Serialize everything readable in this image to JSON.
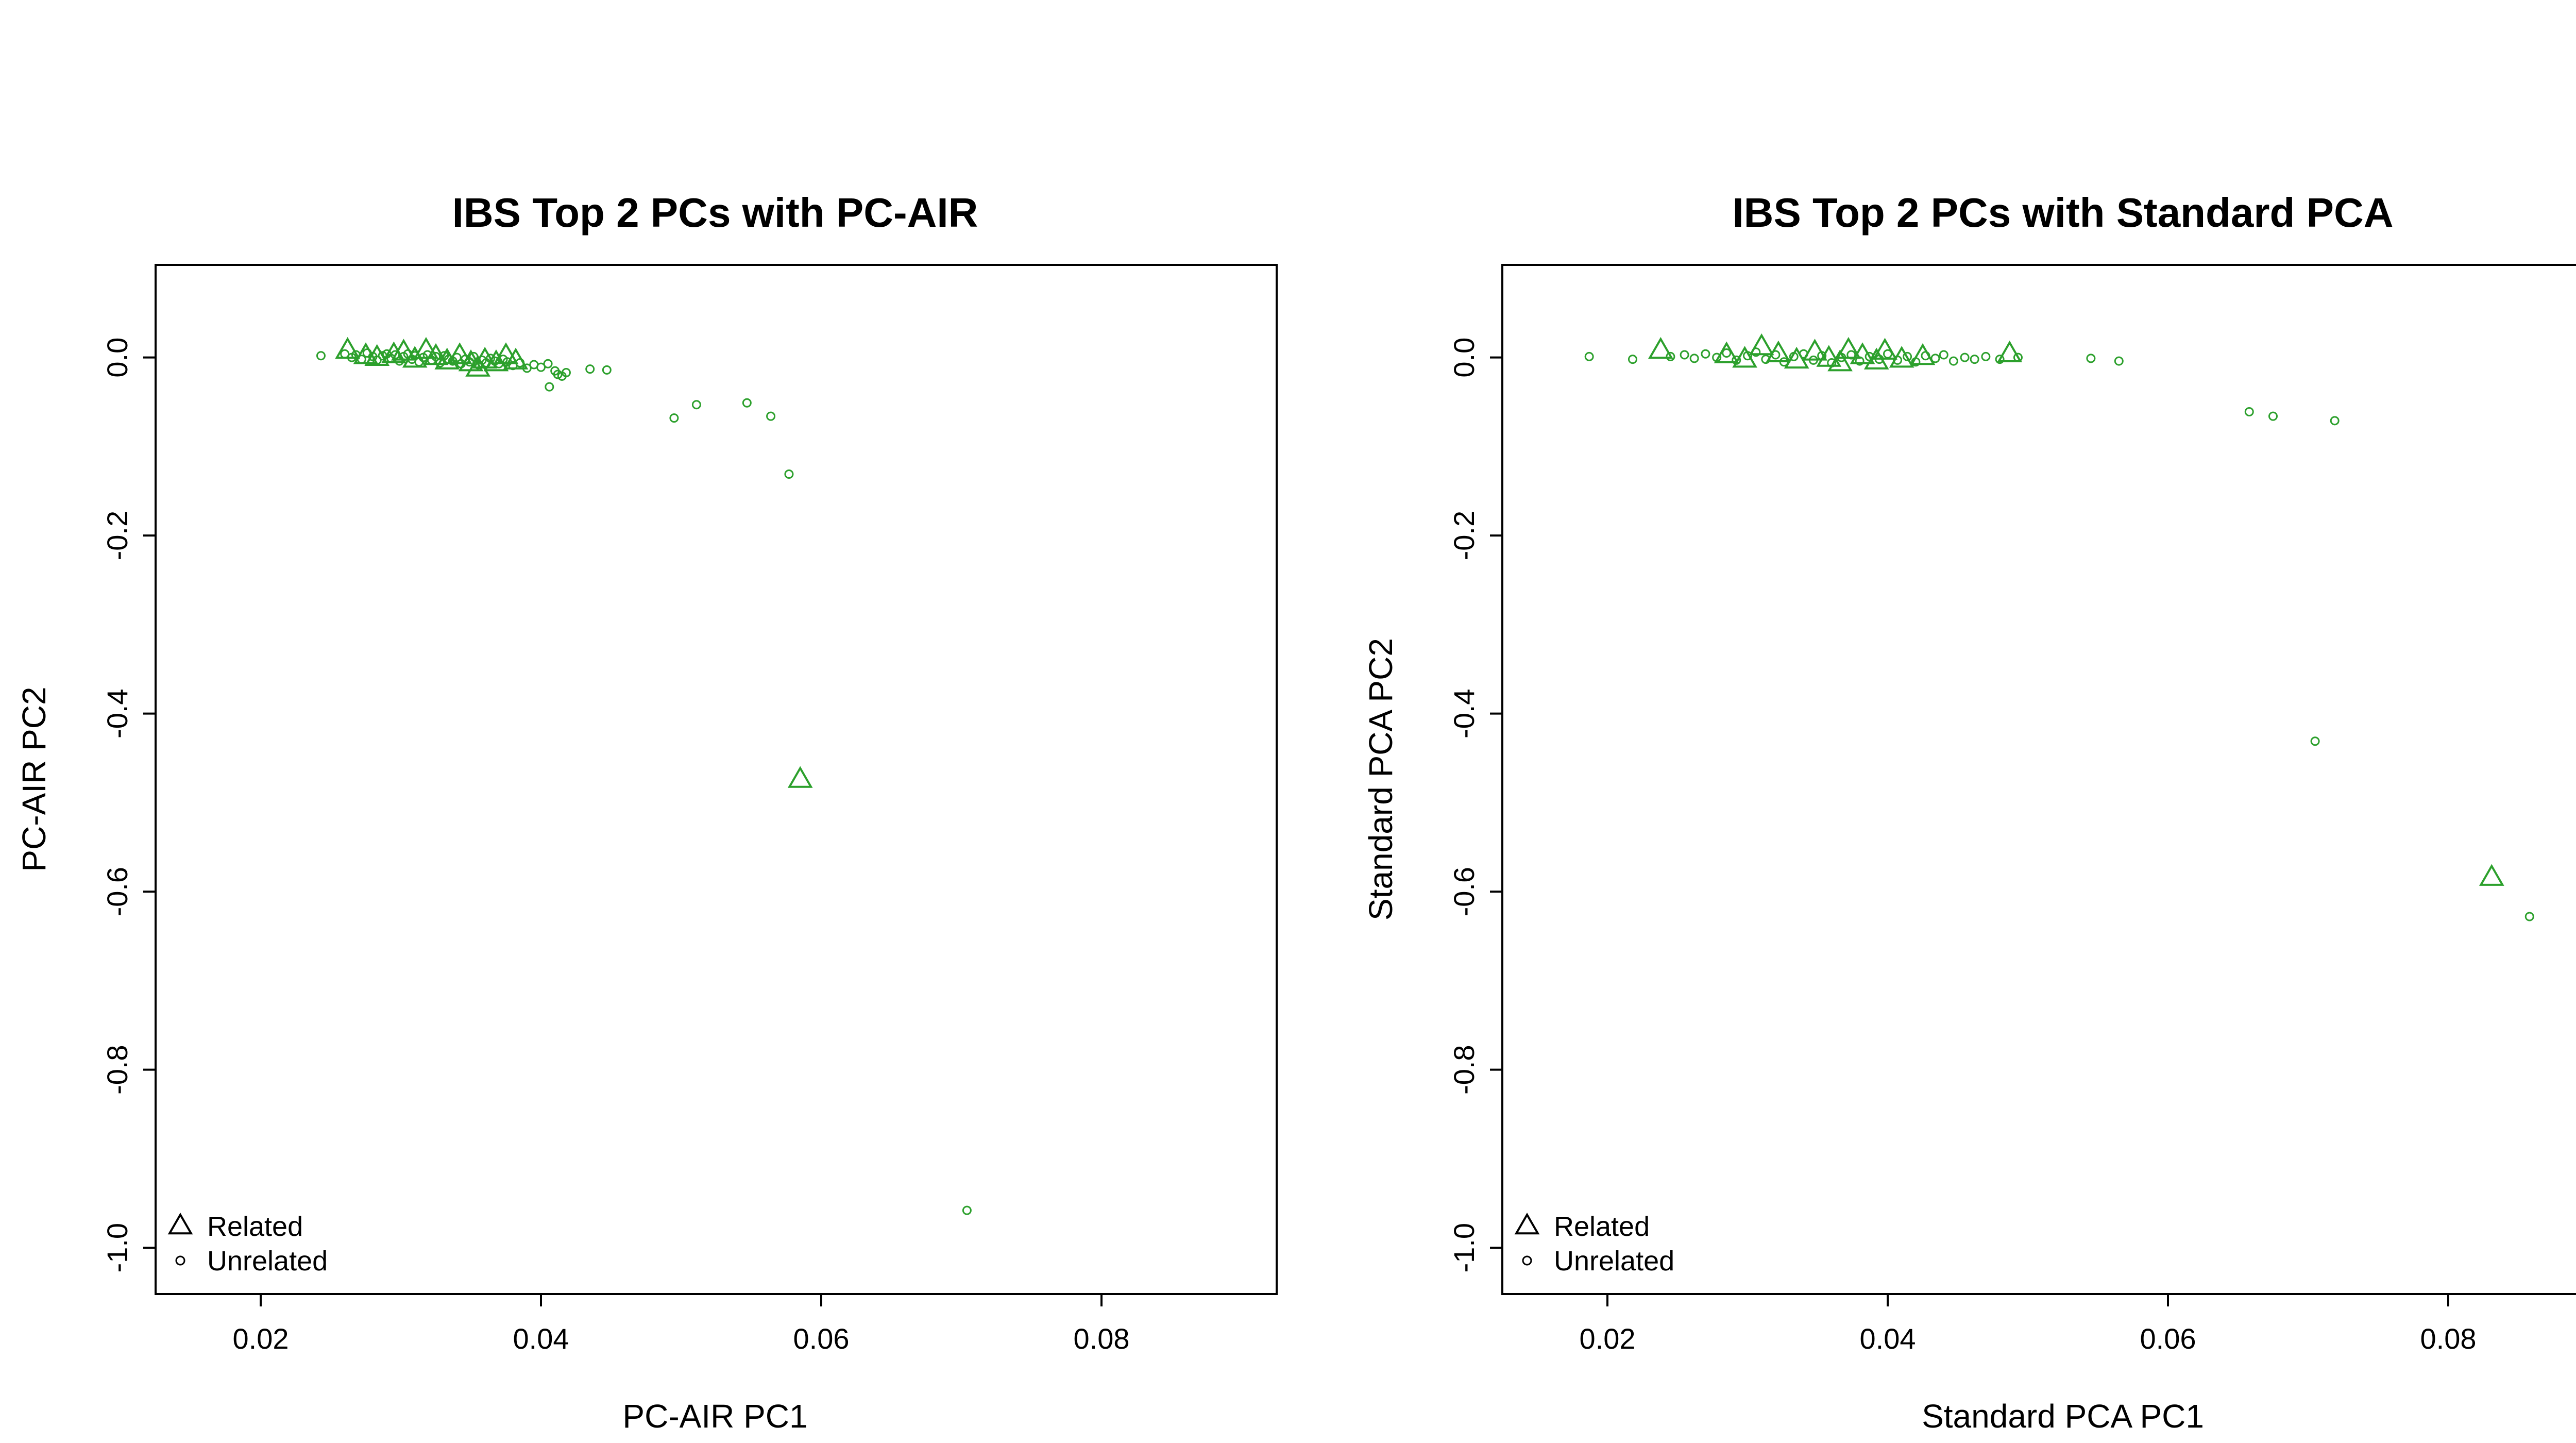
{
  "chart_data": [
    {
      "type": "scatter",
      "title": "IBS Top 2 PCs with PC-AIR",
      "xlabel": "PC-AIR PC1",
      "ylabel": "PC-AIR PC2",
      "xlim": [
        0.0125,
        0.0925
      ],
      "ylim": [
        -1.052,
        0.104
      ],
      "xticks": [
        0.02,
        0.04,
        0.06,
        0.08
      ],
      "xtick_labels": [
        "0.02",
        "0.04",
        "0.06",
        "0.08"
      ],
      "yticks": [
        0.0,
        -0.2,
        -0.4,
        -0.6,
        -0.8,
        -1.0
      ],
      "ytick_labels": [
        "0.0",
        "-0.2",
        "-0.4",
        "-0.6",
        "-0.8",
        "-1.0"
      ],
      "grid": false,
      "color": "#2ca02c",
      "legend": {
        "position": "bottom-left",
        "entries": [
          {
            "label": "Related",
            "marker": "triangle"
          },
          {
            "label": "Unrelated",
            "marker": "circle"
          }
        ]
      },
      "series": [
        {
          "name": "Related",
          "marker": "triangle",
          "x": [
            0.0262,
            0.0275,
            0.0283,
            0.0295,
            0.0302,
            0.031,
            0.0318,
            0.0325,
            0.0333,
            0.0342,
            0.035,
            0.0355,
            0.036,
            0.0368,
            0.0375,
            0.0382,
            0.0585
          ],
          "y": [
            0.008,
            0.002,
            0.0,
            0.003,
            0.006,
            -0.002,
            0.008,
            0.001,
            -0.004,
            0.002,
            -0.006,
            -0.012,
            -0.003,
            -0.006,
            0.002,
            -0.004,
            -0.474
          ]
        },
        {
          "name": "Unrelated",
          "marker": "circle",
          "x": [
            0.0243,
            0.026,
            0.0265,
            0.0268,
            0.0272,
            0.0276,
            0.028,
            0.0283,
            0.0287,
            0.029,
            0.0293,
            0.0296,
            0.0299,
            0.0302,
            0.0305,
            0.0308,
            0.031,
            0.0313,
            0.0316,
            0.0319,
            0.0322,
            0.0325,
            0.0328,
            0.0331,
            0.0334,
            0.0337,
            0.034,
            0.0343,
            0.0346,
            0.0349,
            0.0352,
            0.0355,
            0.0358,
            0.0361,
            0.0364,
            0.0367,
            0.037,
            0.0373,
            0.0376,
            0.038,
            0.0385,
            0.039,
            0.0395,
            0.04,
            0.0405,
            0.041,
            0.0412,
            0.0415,
            0.0418,
            0.0406,
            0.0435,
            0.0447,
            0.0495,
            0.0511,
            0.0547,
            0.0564,
            0.0577,
            0.0704
          ],
          "y": [
            0.002,
            0.004,
            0.0,
            0.003,
            -0.002,
            0.005,
            0.001,
            -0.003,
            0.002,
            0.004,
            -0.001,
            0.003,
            -0.004,
            0.001,
            0.004,
            -0.002,
            0.002,
            -0.005,
            0.0,
            0.003,
            -0.003,
            0.001,
            -0.006,
            0.002,
            -0.002,
            -0.004,
            0.0,
            -0.007,
            -0.002,
            -0.005,
            0.001,
            -0.008,
            -0.003,
            -0.006,
            -0.001,
            -0.004,
            -0.007,
            -0.002,
            -0.005,
            -0.009,
            -0.006,
            -0.012,
            -0.008,
            -0.011,
            -0.007,
            -0.015,
            -0.019,
            -0.021,
            -0.017,
            -0.033,
            -0.013,
            -0.014,
            -0.068,
            -0.053,
            -0.051,
            -0.066,
            -0.131,
            -0.958
          ]
        }
      ]
    },
    {
      "type": "scatter",
      "title": "IBS Top 2 PCs with Standard PCA",
      "xlabel": "Standard PCA PC1",
      "ylabel": "Standard PCA PC2",
      "xlim": [
        0.0125,
        0.0925
      ],
      "ylim": [
        -1.052,
        0.104
      ],
      "xticks": [
        0.02,
        0.04,
        0.06,
        0.08
      ],
      "xtick_labels": [
        "0.02",
        "0.04",
        "0.06",
        "0.08"
      ],
      "yticks": [
        0.0,
        -0.2,
        -0.4,
        -0.6,
        -0.8,
        -1.0
      ],
      "ytick_labels": [
        "0.0",
        "-0.2",
        "-0.4",
        "-0.6",
        "-0.8",
        "-1.0"
      ],
      "grid": false,
      "color": "#2ca02c",
      "legend": {
        "position": "bottom-left",
        "entries": [
          {
            "label": "Related",
            "marker": "triangle"
          },
          {
            "label": "Unrelated",
            "marker": "circle"
          }
        ]
      },
      "series": [
        {
          "name": "Related",
          "marker": "triangle",
          "x": [
            0.0238,
            0.0285,
            0.0298,
            0.031,
            0.0322,
            0.0335,
            0.0348,
            0.0358,
            0.0366,
            0.0372,
            0.0382,
            0.0392,
            0.0398,
            0.041,
            0.0425,
            0.0487,
            0.0831
          ],
          "y": [
            0.008,
            0.003,
            -0.002,
            0.012,
            0.004,
            -0.003,
            0.006,
            -0.001,
            -0.006,
            0.008,
            0.002,
            -0.004,
            0.007,
            -0.002,
            0.001,
            0.004,
            -0.584
          ]
        },
        {
          "name": "Unrelated",
          "marker": "circle",
          "x": [
            0.0187,
            0.0218,
            0.0245,
            0.0255,
            0.0262,
            0.027,
            0.0278,
            0.0285,
            0.0292,
            0.03,
            0.0306,
            0.0313,
            0.032,
            0.0326,
            0.0333,
            0.034,
            0.0347,
            0.0353,
            0.036,
            0.0367,
            0.0374,
            0.038,
            0.0387,
            0.0394,
            0.04,
            0.0407,
            0.0414,
            0.042,
            0.0427,
            0.0434,
            0.044,
            0.0447,
            0.0455,
            0.0462,
            0.047,
            0.048,
            0.0493,
            0.0545,
            0.0565,
            0.0658,
            0.0675,
            0.0719,
            0.0705,
            0.0858
          ],
          "y": [
            0.001,
            -0.002,
            0.001,
            0.003,
            -0.001,
            0.004,
            0.0,
            0.005,
            -0.003,
            0.002,
            0.006,
            -0.002,
            0.003,
            -0.005,
            0.001,
            0.004,
            -0.003,
            0.002,
            -0.006,
            0.0,
            0.003,
            -0.004,
            0.001,
            -0.002,
            0.004,
            -0.003,
            0.001,
            -0.005,
            0.002,
            -0.001,
            0.003,
            -0.004,
            0.0,
            -0.002,
            0.001,
            -0.002,
            0.0,
            -0.001,
            -0.004,
            -0.061,
            -0.066,
            -0.071,
            -0.431,
            -0.628
          ]
        }
      ]
    }
  ]
}
